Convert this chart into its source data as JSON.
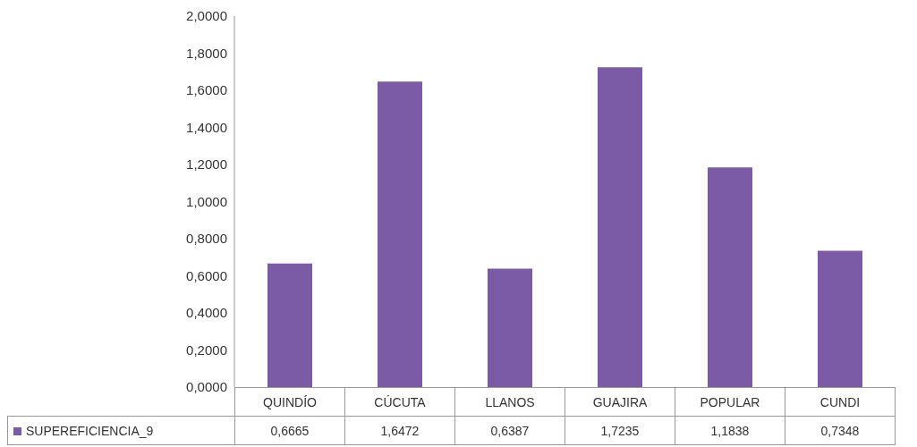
{
  "chart_data": {
    "type": "bar",
    "categories": [
      "QUINDÍO",
      "CÚCUTA",
      "LLANOS",
      "GUAJIRA",
      "POPULAR",
      "CUNDI"
    ],
    "series": [
      {
        "name": "SUPEREFICIENCIA_9",
        "color": "#7b5aa6",
        "values": [
          0.6665,
          1.6472,
          0.6387,
          1.7235,
          1.1838,
          0.7348
        ],
        "value_labels": [
          "0,6665",
          "1,6472",
          "0,6387",
          "1,7235",
          "1,1838",
          "0,7348"
        ]
      }
    ],
    "ylim": [
      0,
      2
    ],
    "yticks": [
      {
        "value": 0,
        "label": "0,0000"
      },
      {
        "value": 0.2,
        "label": "0,2000"
      },
      {
        "value": 0.4,
        "label": "0,4000"
      },
      {
        "value": 0.6,
        "label": "0,6000"
      },
      {
        "value": 0.8,
        "label": "0,8000"
      },
      {
        "value": 1,
        "label": "1,0000"
      },
      {
        "value": 1.2,
        "label": "1,2000"
      },
      {
        "value": 1.4,
        "label": "1,4000"
      },
      {
        "value": 1.6,
        "label": "1,6000"
      },
      {
        "value": 1.8,
        "label": "1,8000"
      },
      {
        "value": 2,
        "label": "2,0000"
      }
    ],
    "legend": "bottom",
    "grid": false
  }
}
